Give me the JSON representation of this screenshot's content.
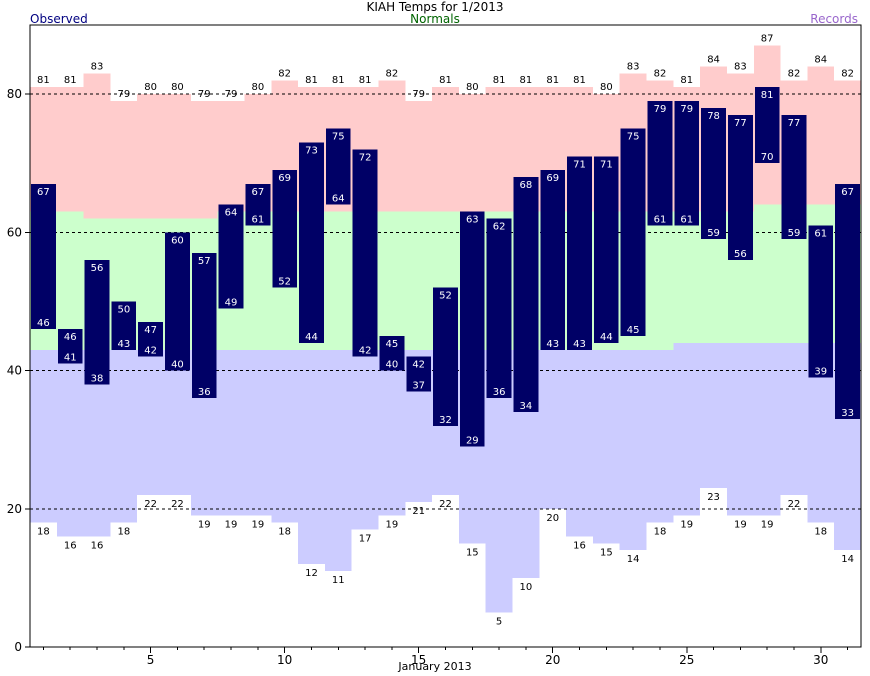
{
  "chart_data": {
    "type": "bar",
    "title": "KIAH Temps for 1/2013",
    "legend": {
      "observed": "Observed",
      "normals": "Normals",
      "records": "Records",
      "placement": "top"
    },
    "xlabel": "January 2013",
    "ylabel": "",
    "xlim": [
      0.5,
      31.5
    ],
    "ylim": [
      0,
      90
    ],
    "x_ticks": [
      5,
      10,
      15,
      20,
      25,
      30
    ],
    "y_ticks": [
      0,
      20,
      40,
      60,
      80
    ],
    "days": [
      1,
      2,
      3,
      4,
      5,
      6,
      7,
      8,
      9,
      10,
      11,
      12,
      13,
      14,
      15,
      16,
      17,
      18,
      19,
      20,
      21,
      22,
      23,
      24,
      25,
      26,
      27,
      28,
      29,
      30,
      31
    ],
    "series": [
      {
        "name": "Records",
        "record_high": [
          81,
          81,
          83,
          79,
          80,
          80,
          79,
          79,
          80,
          82,
          81,
          81,
          81,
          82,
          79,
          81,
          80,
          81,
          81,
          81,
          81,
          80,
          83,
          82,
          81,
          84,
          83,
          87,
          82,
          84,
          82
        ],
        "record_low": [
          18,
          16,
          16,
          18,
          22,
          22,
          19,
          19,
          19,
          18,
          12,
          11,
          17,
          19,
          21,
          22,
          15,
          5,
          10,
          20,
          16,
          15,
          14,
          18,
          19,
          23,
          19,
          19,
          22,
          18,
          14
        ]
      },
      {
        "name": "Normals",
        "normal_high": [
          63,
          63,
          62,
          62,
          62,
          62,
          62,
          63,
          63,
          63,
          63,
          63,
          63,
          63,
          63,
          63,
          63,
          63,
          63,
          63,
          63,
          63,
          63,
          63,
          63,
          63,
          63,
          64,
          64,
          64,
          64
        ],
        "normal_low": [
          43,
          43,
          43,
          43,
          43,
          43,
          43,
          43,
          43,
          43,
          43,
          43,
          43,
          43,
          43,
          43,
          43,
          43,
          43,
          43,
          43,
          43,
          43,
          43,
          44,
          44,
          44,
          44,
          44,
          44,
          44
        ]
      },
      {
        "name": "Observed",
        "observed_high": [
          67,
          46,
          56,
          50,
          47,
          60,
          57,
          64,
          67,
          69,
          73,
          75,
          72,
          45,
          42,
          52,
          63,
          62,
          68,
          69,
          71,
          71,
          75,
          79,
          79,
          78,
          77,
          81,
          77,
          61,
          67
        ],
        "observed_low": [
          46,
          41,
          38,
          43,
          42,
          40,
          36,
          49,
          61,
          52,
          44,
          64,
          42,
          40,
          37,
          32,
          29,
          36,
          34,
          43,
          43,
          44,
          45,
          61,
          61,
          59,
          56,
          70,
          59,
          39,
          33
        ]
      }
    ],
    "grid": "dashed at y ticks",
    "colors": {
      "record_band": "#ffcccc",
      "normal_band": "#ccffcc",
      "low_band": "#ccccff",
      "observed_bar": "#000066",
      "observed_title": "#000080",
      "normals_title": "#006400",
      "records_title": "#9966cc"
    }
  }
}
